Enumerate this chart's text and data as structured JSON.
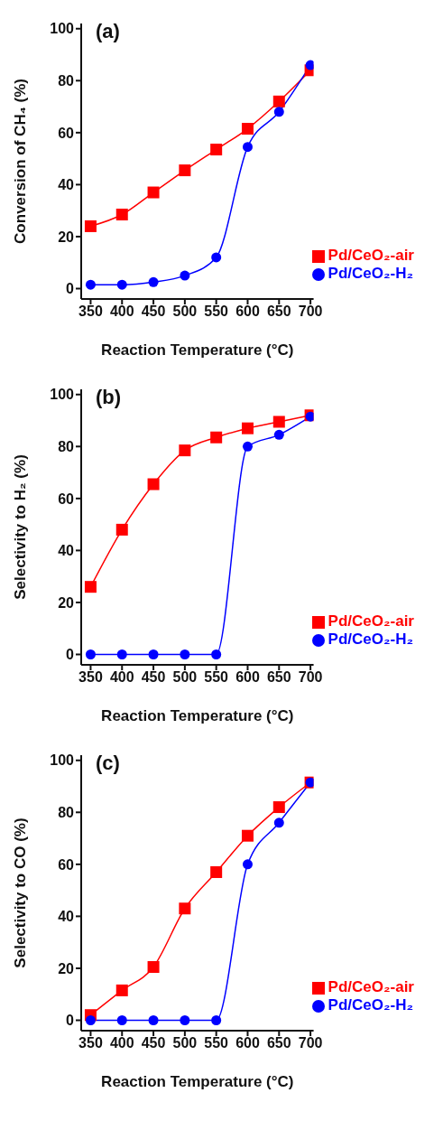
{
  "chart_data": [
    {
      "type": "line",
      "annotations": [
        "(a)"
      ],
      "xlabel": "Reaction Temperature (°C)",
      "ylabel": "Conversion of CH₄ (%)",
      "x": [
        350,
        400,
        450,
        500,
        550,
        600,
        650,
        700
      ],
      "xlim": [
        335,
        705
      ],
      "xticks": [
        350,
        400,
        450,
        500,
        550,
        600,
        650,
        700
      ],
      "ylim": [
        -4,
        102
      ],
      "yticks": [
        0,
        20,
        40,
        60,
        80,
        100
      ],
      "legend": "bottom right",
      "grid": false,
      "line_style": "solid",
      "series": [
        {
          "name": "Pd/CeO₂-air",
          "color": "#ff0000",
          "marker": "square",
          "values": [
            24,
            28.5,
            37,
            45.5,
            53.5,
            61.5,
            72,
            84
          ]
        },
        {
          "name": "Pd/CeO₂-H₂",
          "color": "#0000ff",
          "marker": "circle",
          "values": [
            1.5,
            1.5,
            2.5,
            5,
            12,
            54.5,
            68,
            86
          ]
        }
      ]
    },
    {
      "type": "line",
      "annotations": [
        "(b)"
      ],
      "xlabel": "Reaction Temperature (°C)",
      "ylabel": "Selectivity to H₂ (%)",
      "x": [
        350,
        400,
        450,
        500,
        550,
        600,
        650,
        700
      ],
      "xlim": [
        335,
        705
      ],
      "xticks": [
        350,
        400,
        450,
        500,
        550,
        600,
        650,
        700
      ],
      "ylim": [
        -4,
        102
      ],
      "yticks": [
        0,
        20,
        40,
        60,
        80,
        100
      ],
      "legend": "bottom right",
      "grid": false,
      "line_style": "solid",
      "series": [
        {
          "name": "Pd/CeO₂-air",
          "color": "#ff0000",
          "marker": "square",
          "values": [
            26,
            48,
            65.5,
            78.5,
            83.5,
            87,
            89.5,
            92
          ]
        },
        {
          "name": "Pd/CeO₂-H₂",
          "color": "#0000ff",
          "marker": "circle",
          "values": [
            0,
            0,
            0,
            0,
            0,
            80,
            84.5,
            91.5
          ]
        }
      ]
    },
    {
      "type": "line",
      "annotations": [
        "(c)"
      ],
      "xlabel": "Reaction Temperature (°C)",
      "ylabel": "Selectivity to CO (%)",
      "x": [
        350,
        400,
        450,
        500,
        550,
        600,
        650,
        700
      ],
      "xlim": [
        335,
        705
      ],
      "xticks": [
        350,
        400,
        450,
        500,
        550,
        600,
        650,
        700
      ],
      "ylim": [
        -4,
        102
      ],
      "yticks": [
        0,
        20,
        40,
        60,
        80,
        100
      ],
      "legend": "bottom right",
      "grid": false,
      "line_style": "solid",
      "series": [
        {
          "name": "Pd/CeO₂-air",
          "color": "#ff0000",
          "marker": "square",
          "values": [
            2,
            11.5,
            20.5,
            43,
            57,
            71,
            82,
            91.5
          ]
        },
        {
          "name": "Pd/CeO₂-H₂",
          "color": "#0000ff",
          "marker": "circle",
          "values": [
            0,
            0,
            0,
            0,
            0,
            60,
            76,
            91.5
          ]
        }
      ]
    }
  ]
}
